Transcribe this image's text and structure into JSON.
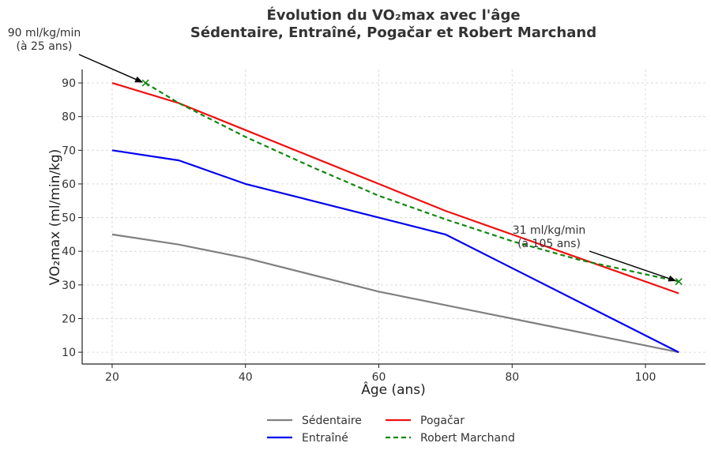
{
  "chart_data": {
    "type": "line",
    "title": "Évolution du VO₂max avec l'âge",
    "subtitle": "Sédentaire, Entraîné, Pogačar et Robert Marchand",
    "xlabel": "Âge (ans)",
    "ylabel": "VO₂max (ml/min/kg)",
    "xlim": [
      15.5,
      109
    ],
    "ylim": [
      6.5,
      94
    ],
    "xticks": [
      20,
      40,
      60,
      80,
      100
    ],
    "yticks": [
      10,
      20,
      30,
      40,
      50,
      60,
      70,
      80,
      90
    ],
    "grid": true,
    "legend_position": "bottom",
    "series": [
      {
        "name": "Sédentaire",
        "color": "#808080",
        "style": "solid",
        "x": [
          20,
          30,
          40,
          50,
          60,
          70,
          80,
          90,
          105
        ],
        "y": [
          45,
          42,
          38,
          33,
          28,
          24,
          20,
          16,
          10
        ]
      },
      {
        "name": "Entraîné",
        "color": "#0000ee",
        "style": "solid",
        "x": [
          20,
          30,
          40,
          70,
          105
        ],
        "y": [
          70,
          67,
          60,
          45,
          10
        ]
      },
      {
        "name": "Pogačar",
        "color": "#ee1111",
        "style": "solid",
        "x": [
          20,
          30,
          40,
          50,
          60,
          70,
          80,
          90,
          105
        ],
        "y": [
          90,
          84,
          76,
          68,
          60,
          52,
          45,
          38,
          27.5
        ]
      },
      {
        "name": "Robert Marchand",
        "color": "#118811",
        "style": "dashed",
        "x": [
          25,
          30,
          40,
          50,
          60,
          70,
          80,
          90,
          105
        ],
        "y": [
          90,
          84,
          74,
          65,
          56.5,
          49.5,
          43,
          37.5,
          31
        ]
      }
    ],
    "annotations": [
      {
        "text_lines": [
          "90 ml/kg/min",
          "(à 25 ans)"
        ],
        "target_x": 25,
        "target_y": 90
      },
      {
        "text_lines": [
          "31 ml/kg/min",
          "(à 105 ans)"
        ],
        "target_x": 105,
        "target_y": 31
      }
    ]
  }
}
